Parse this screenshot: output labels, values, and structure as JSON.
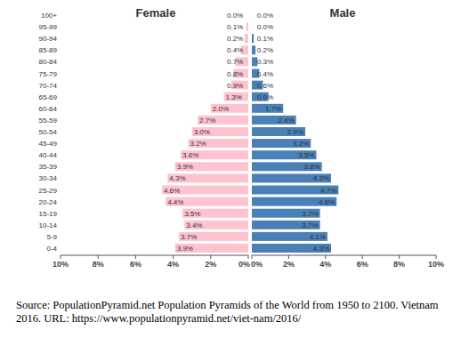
{
  "chart_data": {
    "type": "bar",
    "orientation": "horizontal",
    "data_labels": true,
    "categories": [
      "0-4",
      "5-9",
      "10-14",
      "15-19",
      "20-24",
      "25-29",
      "30-34",
      "35-39",
      "40-44",
      "45-49",
      "50-54",
      "55-59",
      "60-64",
      "65-69",
      "70-74",
      "75-79",
      "80-84",
      "85-89",
      "90-94",
      "95-99",
      "100+"
    ],
    "series": [
      {
        "name": "Female",
        "color": "#ffc2cf",
        "values": [
          3.9,
          3.7,
          3.4,
          3.5,
          4.4,
          4.6,
          4.3,
          3.9,
          3.6,
          3.2,
          3.0,
          2.7,
          2.0,
          1.3,
          0.9,
          0.8,
          0.7,
          0.4,
          0.2,
          0.1,
          0.0
        ],
        "value_labels": [
          "3.9%",
          "3.7%",
          "3.4%",
          "3.5%",
          "4.4%",
          "4.6%",
          "4.3%",
          "3.9%",
          "3.6%",
          "3.2%",
          "3.0%",
          "2.7%",
          "2.0%",
          "1.3%",
          "0.9%",
          "0.8%",
          "0.7%",
          "0.4%",
          "0.2%",
          "0.1%",
          "0.0%"
        ]
      },
      {
        "name": "Male",
        "color": "#4a80b8",
        "values": [
          4.3,
          4.1,
          3.7,
          3.7,
          4.6,
          4.7,
          4.3,
          3.8,
          3.5,
          3.2,
          2.9,
          2.4,
          1.7,
          0.9,
          0.6,
          0.4,
          0.3,
          0.2,
          0.1,
          0.0,
          0.0
        ],
        "value_labels": [
          "4.3%",
          "4.1%",
          "3.7%",
          "3.7%",
          "4.6%",
          "4.7%",
          "4.3%",
          "3.8%",
          "3.5%",
          "3.2%",
          "2.9%",
          "2.4%",
          "1.7%",
          "0.9%",
          "0.6%",
          "0.4%",
          "0.3%",
          "0.2%",
          "0.1%",
          "0.0%",
          "0.0%"
        ]
      }
    ],
    "xlim": [
      0,
      10
    ],
    "xticks": [
      {
        "value": 0,
        "label": "0%"
      },
      {
        "value": 2,
        "label": "2%"
      },
      {
        "value": 4,
        "label": "4%"
      },
      {
        "value": 6,
        "label": "6%"
      },
      {
        "value": 8,
        "label": "8%"
      },
      {
        "value": 10,
        "label": "10%"
      }
    ],
    "source": "Source: PopulationPyramid.net Population Pyramids of the World from 1950 to 2100. Vietnam 2016. URL: https://www.populationpyramid.net/viet-nam/2016/"
  }
}
